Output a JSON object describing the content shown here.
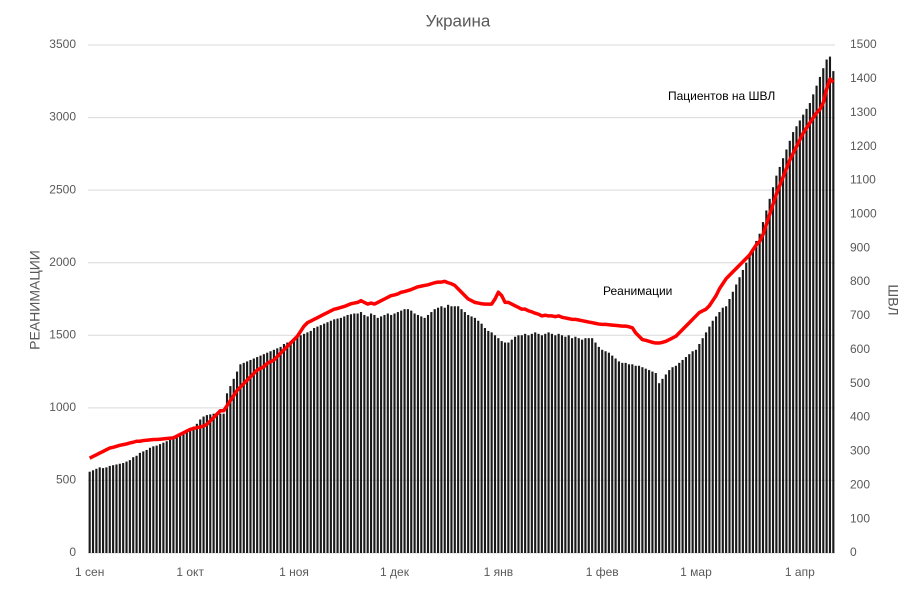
{
  "chart_data": {
    "type": "bar-line",
    "title": "Украина",
    "y_label": "РЕАНИМАЦИИ",
    "y2_label": "ШВЛ",
    "categories": [
      "1 сен",
      null,
      null,
      null,
      null,
      null,
      null,
      null,
      null,
      null,
      null,
      null,
      null,
      null,
      null,
      null,
      null,
      null,
      null,
      null,
      null,
      null,
      null,
      null,
      null,
      null,
      null,
      null,
      null,
      null,
      "1 окт",
      null,
      null,
      null,
      null,
      null,
      null,
      null,
      null,
      null,
      null,
      null,
      null,
      null,
      null,
      null,
      null,
      null,
      null,
      null,
      null,
      null,
      null,
      null,
      null,
      null,
      null,
      null,
      null,
      null,
      null,
      "1 ноя",
      null,
      null,
      null,
      null,
      null,
      null,
      null,
      null,
      null,
      null,
      null,
      null,
      null,
      null,
      null,
      null,
      null,
      null,
      null,
      null,
      null,
      null,
      null,
      null,
      null,
      null,
      null,
      null,
      null,
      "1 дек",
      null,
      null,
      null,
      null,
      null,
      null,
      null,
      null,
      null,
      null,
      null,
      null,
      null,
      null,
      null,
      null,
      null,
      null,
      null,
      null,
      null,
      null,
      null,
      null,
      null,
      null,
      null,
      null,
      null,
      null,
      "1 янв",
      null,
      null,
      null,
      null,
      null,
      null,
      null,
      null,
      null,
      null,
      null,
      null,
      null,
      null,
      null,
      null,
      null,
      null,
      null,
      null,
      null,
      null,
      null,
      null,
      null,
      null,
      null,
      null,
      null,
      null,
      "1 фев",
      null,
      null,
      null,
      null,
      null,
      null,
      null,
      null,
      null,
      null,
      null,
      null,
      null,
      null,
      null,
      null,
      null,
      null,
      null,
      null,
      null,
      null,
      null,
      null,
      null,
      null,
      null,
      "1 мар",
      null,
      null,
      null,
      null,
      null,
      null,
      null,
      null,
      null,
      null,
      null,
      null,
      null,
      null,
      null,
      null,
      null,
      null,
      null,
      null,
      null,
      null,
      null,
      null,
      null,
      null,
      null,
      null,
      null,
      null,
      "1 апр",
      null,
      null,
      null,
      null,
      null,
      null,
      null,
      null,
      null,
      null
    ],
    "series": [
      {
        "name": "Реанимации",
        "type": "bar",
        "color": "#1a1a1a",
        "axis": "y",
        "values": [
          560,
          570,
          580,
          590,
          585,
          590,
          600,
          605,
          610,
          615,
          620,
          630,
          640,
          660,
          670,
          690,
          700,
          710,
          725,
          735,
          740,
          750,
          760,
          770,
          780,
          790,
          800,
          815,
          830,
          840,
          850,
          870,
          890,
          920,
          940,
          950,
          955,
          960,
          965,
          960,
          960,
          1100,
          1150,
          1200,
          1250,
          1300,
          1310,
          1320,
          1330,
          1340,
          1350,
          1360,
          1370,
          1380,
          1390,
          1400,
          1410,
          1420,
          1440,
          1450,
          1460,
          1470,
          1490,
          1500,
          1510,
          1520,
          1530,
          1550,
          1560,
          1570,
          1580,
          1590,
          1600,
          1610,
          1615,
          1620,
          1630,
          1640,
          1645,
          1650,
          1650,
          1660,
          1640,
          1630,
          1650,
          1640,
          1620,
          1630,
          1640,
          1650,
          1640,
          1650,
          1660,
          1670,
          1680,
          1680,
          1670,
          1650,
          1640,
          1630,
          1620,
          1640,
          1660,
          1680,
          1690,
          1700,
          1690,
          1710,
          1700,
          1700,
          1700,
          1680,
          1660,
          1640,
          1630,
          1620,
          1600,
          1580,
          1550,
          1530,
          1520,
          1500,
          1480,
          1460,
          1450,
          1450,
          1470,
          1490,
          1500,
          1500,
          1510,
          1500,
          1510,
          1520,
          1510,
          1500,
          1510,
          1520,
          1510,
          1500,
          1510,
          1500,
          1490,
          1500,
          1480,
          1490,
          1480,
          1470,
          1480,
          1480,
          1480,
          1450,
          1420,
          1400,
          1390,
          1380,
          1360,
          1340,
          1320,
          1310,
          1310,
          1300,
          1300,
          1290,
          1290,
          1280,
          1270,
          1260,
          1250,
          1240,
          1170,
          1200,
          1230,
          1260,
          1280,
          1290,
          1310,
          1330,
          1350,
          1370,
          1390,
          1400,
          1440,
          1480,
          1520,
          1560,
          1600,
          1630,
          1660,
          1690,
          1700,
          1750,
          1800,
          1850,
          1900,
          1950,
          2000,
          2050,
          2100,
          2150,
          2200,
          2280,
          2360,
          2440,
          2520,
          2600,
          2660,
          2720,
          2780,
          2840,
          2900,
          2940,
          2980,
          3020,
          3060,
          3100,
          3160,
          3220,
          3280,
          3340,
          3400,
          3420,
          3320
        ]
      },
      {
        "name": "Пациентов на ШВЛ",
        "type": "line",
        "color": "#ff0000",
        "axis": "y2",
        "values": [
          280,
          285,
          290,
          295,
          300,
          305,
          310,
          312,
          315,
          318,
          320,
          322,
          325,
          327,
          330,
          330,
          332,
          333,
          334,
          335,
          335,
          336,
          337,
          338,
          339,
          340,
          345,
          350,
          355,
          360,
          365,
          368,
          370,
          372,
          375,
          380,
          390,
          400,
          410,
          420,
          420,
          435,
          450,
          465,
          480,
          490,
          500,
          510,
          520,
          530,
          540,
          545,
          550,
          560,
          565,
          570,
          580,
          590,
          600,
          610,
          620,
          630,
          640,
          655,
          670,
          680,
          685,
          690,
          695,
          700,
          705,
          710,
          715,
          720,
          722,
          725,
          728,
          732,
          736,
          738,
          740,
          745,
          740,
          735,
          738,
          735,
          740,
          745,
          750,
          755,
          760,
          762,
          765,
          770,
          772,
          775,
          778,
          782,
          786,
          788,
          790,
          792,
          795,
          798,
          800,
          800,
          802,
          798,
          795,
          790,
          780,
          770,
          760,
          750,
          745,
          740,
          738,
          736,
          735,
          735,
          735,
          750,
          770,
          760,
          740,
          740,
          735,
          730,
          725,
          720,
          720,
          715,
          712,
          708,
          705,
          700,
          702,
          700,
          700,
          698,
          700,
          696,
          694,
          692,
          690,
          690,
          688,
          686,
          684,
          682,
          680,
          678,
          676,
          675,
          675,
          674,
          673,
          672,
          671,
          670,
          670,
          668,
          665,
          650,
          640,
          630,
          628,
          625,
          622,
          620,
          620,
          622,
          625,
          630,
          635,
          640,
          650,
          660,
          670,
          680,
          690,
          700,
          710,
          715,
          720,
          730,
          745,
          760,
          780,
          795,
          810,
          820,
          830,
          840,
          850,
          860,
          870,
          880,
          895,
          910,
          920,
          940,
          970,
          1000,
          1030,
          1060,
          1085,
          1110,
          1135,
          1160,
          1180,
          1200,
          1220,
          1240,
          1255,
          1270,
          1285,
          1300,
          1310,
          1330,
          1370,
          1400,
          1390
        ]
      }
    ],
    "ylim": [
      0,
      3500
    ],
    "yticks": [
      0,
      500,
      1000,
      1500,
      2000,
      2500,
      3000,
      3500
    ],
    "y2lim": [
      0,
      1500
    ],
    "y2ticks": [
      0,
      100,
      200,
      300,
      400,
      500,
      600,
      700,
      800,
      900,
      1000,
      1100,
      1200,
      1300,
      1400,
      1500
    ],
    "grid": true
  }
}
